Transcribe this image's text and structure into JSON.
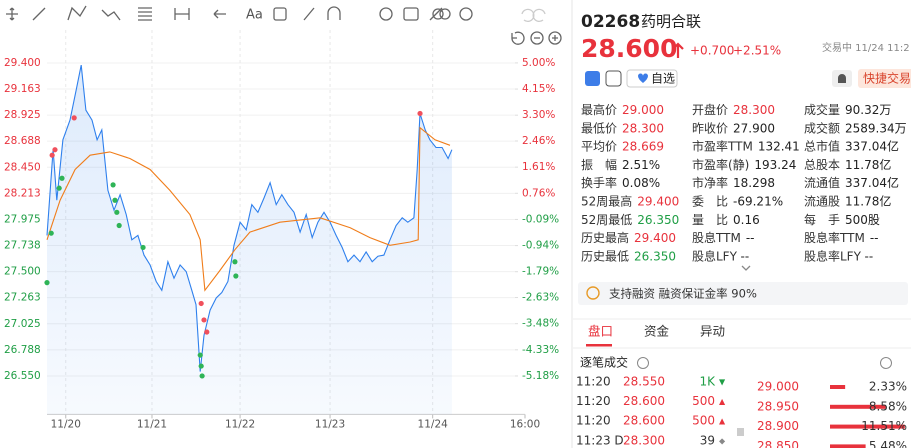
{
  "toolbar": {
    "text_tool": "Aa"
  },
  "chart_data": {
    "type": "line",
    "xlim": [
      0,
      102
    ],
    "xticks": [
      {
        "value": 4,
        "label": "11/20"
      },
      {
        "value": 22.4,
        "label": "11/21"
      },
      {
        "value": 41.2,
        "label": "11/22"
      },
      {
        "value": 60.4,
        "label": "11/23"
      },
      {
        "value": 82.3,
        "label": "11/24"
      },
      {
        "value": 102,
        "label": "16:00"
      }
    ],
    "ylim": [
      26.2,
      29.7
    ],
    "yticks": [
      {
        "value": 29.4,
        "label": "29.400"
      },
      29.163,
      28.925,
      28.688,
      {
        "value": 28.45,
        "label": "28.450"
      },
      28.213,
      27.975,
      27.738,
      {
        "value": 27.5,
        "label": "27.500"
      },
      27.263,
      27.025,
      26.788,
      {
        "value": 26.55,
        "label": "26.550"
      }
    ],
    "y2lim": [
      -6.43,
      6.07
    ],
    "y2ticks": [
      {
        "value": 5,
        "label": "5.00%"
      },
      {
        "value": 4.15,
        "label": "4.15%"
      },
      {
        "value": 3.3,
        "label": "3.30%"
      },
      {
        "value": 2.46,
        "label": "2.46%"
      },
      {
        "value": 1.61,
        "label": "1.61%"
      },
      {
        "value": 0.76,
        "label": "0.76%"
      },
      {
        "value": -0.09,
        "label": "-0.09%"
      },
      {
        "value": -0.94,
        "label": "-0.94%"
      },
      {
        "value": -1.79,
        "label": "-1.79%"
      },
      {
        "value": -2.63,
        "label": "-2.63%"
      },
      {
        "value": -3.48,
        "label": "-3.48%"
      },
      {
        "value": -4.33,
        "label": "-4.33%"
      },
      {
        "value": -5.18,
        "label": "-5.18%"
      }
    ],
    "grid": true,
    "up_color": "#e8323c",
    "down_color": "#1f9e45",
    "series": [
      {
        "color": "#2f80ed",
        "x": [
          0,
          1.3,
          2.1,
          3.4,
          4.9,
          6.2,
          7.3,
          8.3,
          9.6,
          10.7,
          11.7,
          13.0,
          14.3,
          15.6,
          16.9,
          18.1,
          19.4,
          20.7,
          22.0,
          23.3,
          24.5,
          25.8,
          27.1,
          28.4,
          29.7,
          30.9,
          31.8,
          32.7,
          33.5,
          34.8,
          36.1,
          37.3,
          38.6,
          39.9,
          41.2,
          42.5,
          43.7,
          45.0,
          46.3,
          47.6,
          48.9,
          50.1,
          51.4,
          52.7,
          54.0,
          55.3,
          56.6,
          57.8,
          59.1,
          60.4,
          61.7,
          63.0,
          64.2,
          65.5,
          66.8,
          68.1,
          69.4,
          70.6,
          71.9,
          73.2,
          74.5,
          75.8,
          77.0,
          78.3,
          79.0,
          79.6,
          80.7,
          81.7,
          83.0,
          84.3,
          85.6,
          86.4
        ],
        "values": [
          27.83,
          28.61,
          28.15,
          28.7,
          28.88,
          29.15,
          29.38,
          28.97,
          28.88,
          28.7,
          28.79,
          28.24,
          28.06,
          28.2,
          28.02,
          27.79,
          27.83,
          27.65,
          27.56,
          27.41,
          27.33,
          27.59,
          27.44,
          27.56,
          27.5,
          27.33,
          27.2,
          26.59,
          26.92,
          27.15,
          27.26,
          27.31,
          27.41,
          27.74,
          27.95,
          27.88,
          28.11,
          28.04,
          28.17,
          28.31,
          28.11,
          28.2,
          28.11,
          28.04,
          27.86,
          28.02,
          27.81,
          27.95,
          28.04,
          27.95,
          27.83,
          27.72,
          27.59,
          27.65,
          27.59,
          27.68,
          27.59,
          27.64,
          27.65,
          27.79,
          27.92,
          27.99,
          27.95,
          27.99,
          28.43,
          28.94,
          28.79,
          28.7,
          28.63,
          28.63,
          28.53,
          28.61
        ],
        "area": true
      },
      {
        "color": "#f07d1a",
        "x": [
          0,
          2.8,
          6.0,
          9.2,
          13.4,
          17.7,
          22.0,
          26.2,
          30.5,
          32.7,
          33.7,
          36.9,
          40.1,
          43.3,
          49.7,
          58.3,
          64.7,
          68.9,
          73.2,
          77.5,
          79.2,
          79.6,
          82.8,
          86.0
        ],
        "values": [
          27.79,
          28.15,
          28.43,
          28.56,
          28.59,
          28.53,
          28.43,
          28.24,
          28.02,
          27.79,
          27.33,
          27.51,
          27.7,
          27.86,
          27.95,
          27.99,
          27.9,
          27.81,
          27.74,
          27.77,
          27.79,
          28.81,
          28.7,
          28.65
        ]
      }
    ],
    "markers": [
      {
        "color": "#f0505c",
        "x": [
          1.1,
          1.7,
          5.8,
          32.9,
          33.5,
          34.1,
          79.6
        ],
        "values": [
          28.56,
          28.61,
          28.9,
          27.21,
          27.06,
          26.95,
          28.94
        ]
      },
      {
        "color": "#2fb457",
        "x": [
          0,
          0.9,
          2.6,
          3.2,
          14.1,
          14.5,
          14.9,
          15.4,
          20.5,
          32.7,
          32.9,
          33.1,
          40.1,
          40.3
        ],
        "values": [
          27.4,
          27.85,
          28.26,
          28.35,
          28.29,
          28.15,
          28.04,
          27.92,
          27.72,
          26.74,
          26.64,
          26.55,
          27.59,
          27.46
        ]
      }
    ]
  },
  "quote": {
    "code": "02268",
    "name": "药明合联",
    "price": "28.600",
    "change": "+0.700",
    "change_pct": "+2.51%",
    "status": "交易中 11/24 11:2",
    "watch": "自选",
    "quick_trade": "快捷交易"
  },
  "stats": [
    [
      {
        "label": "最高价",
        "value": "29.000",
        "color": "#e8323c"
      },
      {
        "label": "开盘价",
        "value": "28.300",
        "color": "#e8323c"
      },
      {
        "label": "成交量",
        "value": "90.32万",
        "color": "#222222"
      }
    ],
    [
      {
        "label": "最低价",
        "value": "28.300",
        "color": "#e8323c"
      },
      {
        "label": "昨收价",
        "value": "27.900",
        "color": "#222222"
      },
      {
        "label": "成交额",
        "value": "2589.34万",
        "color": "#222222"
      }
    ],
    [
      {
        "label": "平均价",
        "value": "28.669",
        "color": "#e8323c"
      },
      {
        "label": "市盈率TTM",
        "value": "132.41",
        "color": "#222222"
      },
      {
        "label": "总市值",
        "value": "337.04亿",
        "color": "#222222"
      }
    ],
    [
      {
        "label": "振　幅",
        "value": "2.51%",
        "color": "#222222"
      },
      {
        "label": "市盈率(静)",
        "value": "193.24",
        "color": "#222222"
      },
      {
        "label": "总股本",
        "value": "11.78亿",
        "color": "#222222"
      }
    ],
    [
      {
        "label": "换手率",
        "value": "0.08%",
        "color": "#222222"
      },
      {
        "label": "市净率",
        "value": "18.298",
        "color": "#222222"
      },
      {
        "label": "流通值",
        "value": "337.04亿",
        "color": "#222222"
      }
    ],
    [
      {
        "label": "52周最高",
        "value": "29.400",
        "color": "#e8323c"
      },
      {
        "label": "委　比",
        "value": "-69.21%",
        "color": "#222222"
      },
      {
        "label": "流通股",
        "value": "11.78亿",
        "color": "#222222"
      }
    ],
    [
      {
        "label": "52周最低",
        "value": "26.350",
        "color": "#1f9e45"
      },
      {
        "label": "量　比",
        "value": "0.16",
        "color": "#222222"
      },
      {
        "label": "每　手",
        "value": "500股",
        "color": "#222222"
      }
    ],
    [
      {
        "label": "历史最高",
        "value": "29.400",
        "color": "#e8323c"
      },
      {
        "label": "股息TTM",
        "value": "--",
        "color": "#222222"
      },
      {
        "label": "股息率TTM",
        "value": "--",
        "color": "#222222"
      }
    ],
    [
      {
        "label": "历史最低",
        "value": "26.350",
        "color": "#1f9e45"
      },
      {
        "label": "股息LFY",
        "value": "--",
        "color": "#222222"
      },
      {
        "label": "股息率LFY",
        "value": "--",
        "color": "#222222"
      }
    ]
  ],
  "notice": "支持融资 融资保证金率 90%",
  "tabs": [
    "盘口",
    "资金",
    "异动"
  ],
  "trades": {
    "title": "逐笔成交",
    "rows": [
      {
        "time": "11:20",
        "price": "28.550",
        "volume": "1K",
        "mark": "▼",
        "price_color": "#e8323c",
        "volume_color": "#1f9e45"
      },
      {
        "time": "11:20",
        "price": "28.600",
        "volume": "500",
        "mark": "▲",
        "price_color": "#e8323c",
        "volume_color": "#e8323c"
      },
      {
        "time": "11:20",
        "price": "28.600",
        "volume": "500",
        "mark": "▲",
        "price_color": "#e8323c",
        "volume_color": "#e8323c"
      },
      {
        "time": "11:23 D",
        "price": "28.300",
        "volume": "39",
        "mark": "◆",
        "price_color": "#e8323c",
        "volume_color": "#333333"
      }
    ]
  },
  "orderbook": [
    {
      "price": "29.000",
      "share": 2.33,
      "share_label": "2.33%"
    },
    {
      "price": "28.950",
      "share": 8.58,
      "share_label": "8.58%"
    },
    {
      "price": "28.900",
      "share": 11.51,
      "share_label": "11.51%"
    },
    {
      "price": "28.850",
      "share": 5.48,
      "share_label": "5.48%"
    }
  ]
}
